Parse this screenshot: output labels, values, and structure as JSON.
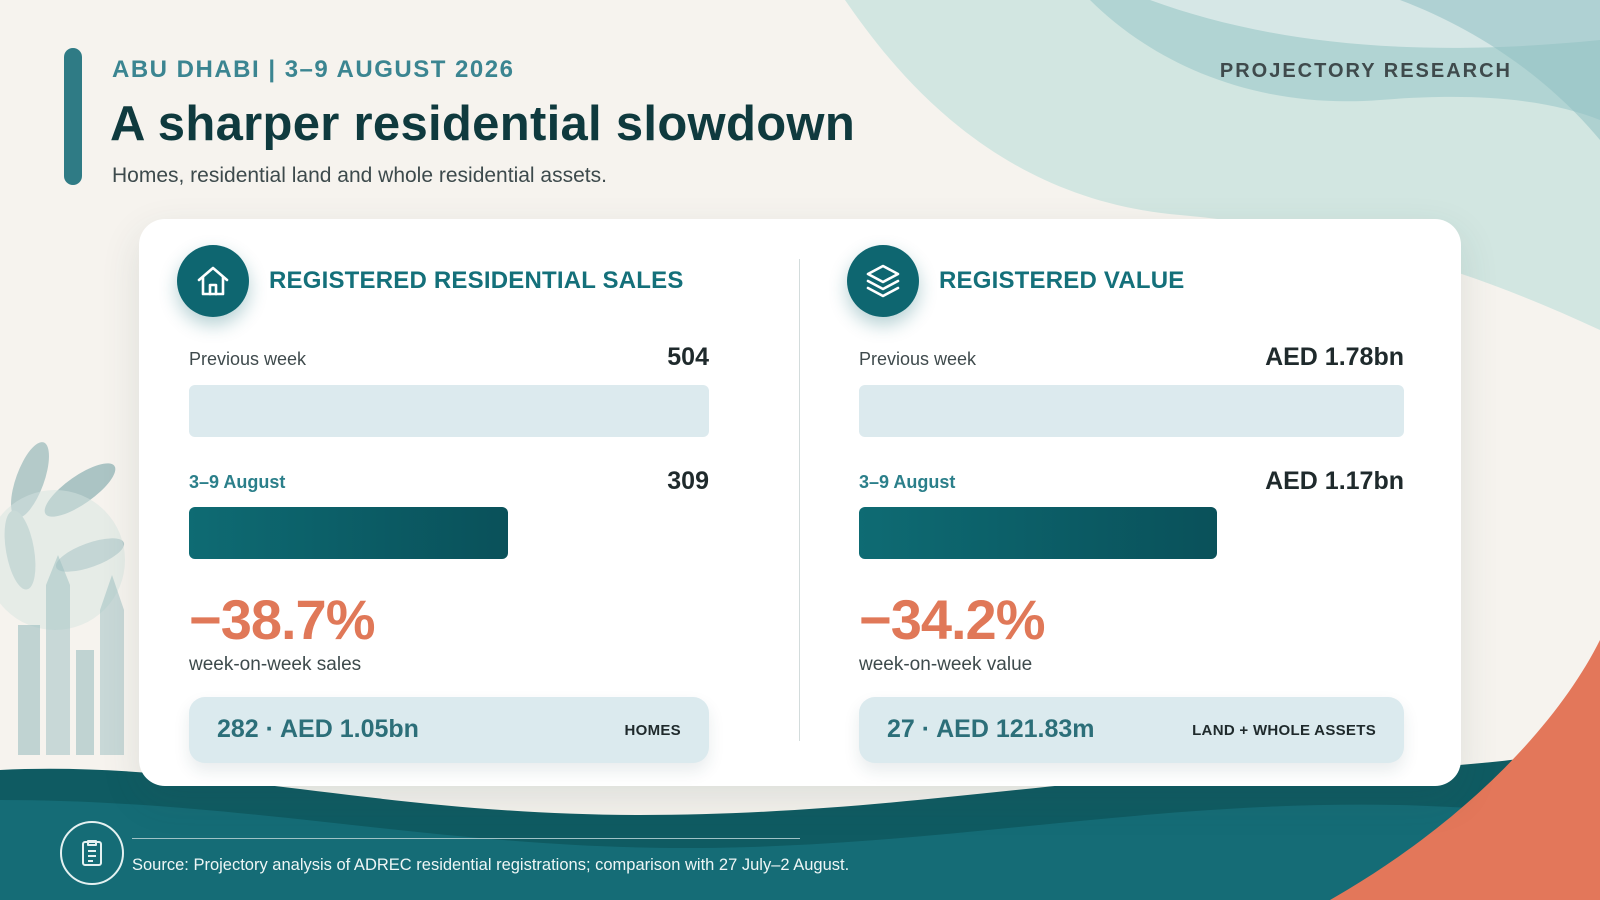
{
  "header": {
    "eyebrow": "ABU DHABI | 3–9 AUGUST 2026",
    "brand": "PROJECTORY RESEARCH",
    "title": "A sharper residential slowdown",
    "subtitle": "Homes, residential land and whole residential assets."
  },
  "panels": [
    {
      "icon": "house-icon",
      "title": "REGISTERED RESIDENTIAL SALES",
      "previous": {
        "label": "Previous week",
        "value": "504",
        "bar_fraction": 1.0
      },
      "current": {
        "label": "3–9 August",
        "value": "309",
        "bar_fraction": 0.613
      },
      "change": "−38.7%",
      "change_caption": "week-on-week sales",
      "breakdown": {
        "main": "282 · AED 1.05bn",
        "tag": "HOMES"
      }
    },
    {
      "icon": "layers-icon",
      "title": "REGISTERED VALUE",
      "previous": {
        "label": "Previous week",
        "value": "AED 1.78bn",
        "bar_fraction": 1.0
      },
      "current": {
        "label": "3–9 August",
        "value": "AED 1.17bn",
        "bar_fraction": 0.657
      },
      "change": "−34.2%",
      "change_caption": "week-on-week value",
      "breakdown": {
        "main": "27 · AED 121.83m",
        "tag": "LAND + WHOLE ASSETS"
      }
    }
  ],
  "footer": {
    "icon": "document-icon",
    "source": "Source: Projectory analysis of ADREC residential registrations; comparison with 27 July–2 August."
  },
  "colors": {
    "accent": "#0e6670",
    "negative": "#e07858",
    "previous_bar": "#dceaee",
    "background": "#f6f3ee"
  }
}
